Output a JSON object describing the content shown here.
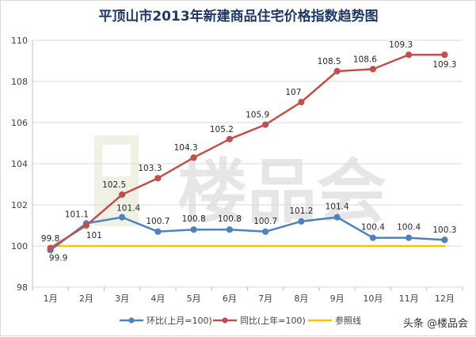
{
  "chart_data": {
    "type": "line",
    "title": "平顶山市2013年新建商品住宅价格指数趋势图",
    "categories": [
      "1月",
      "2月",
      "3月",
      "4月",
      "5月",
      "6月",
      "7月",
      "8月",
      "9月",
      "10月",
      "11月",
      "12月"
    ],
    "ylim": [
      98,
      110
    ],
    "yticks": [
      98,
      100,
      102,
      104,
      106,
      108,
      110
    ],
    "grid": true,
    "legend_position": "bottom",
    "series": [
      {
        "name": "环比(上月=100)",
        "color": "#4f81bd",
        "values": [
          99.8,
          101.1,
          101.4,
          100.7,
          100.8,
          100.8,
          100.7,
          101.2,
          101.4,
          100.4,
          100.4,
          100.3
        ],
        "labels": [
          "99.8",
          "101.1",
          "101.4",
          "100.7",
          "100.8",
          "100.8",
          "100.7",
          "101.2",
          "101.4",
          "100.4",
          "100.4",
          "100.3"
        ]
      },
      {
        "name": "同比(上年=100)",
        "color": "#c0504d",
        "values": [
          99.9,
          101,
          102.5,
          103.3,
          104.3,
          105.2,
          105.9,
          107,
          108.5,
          108.6,
          109.3,
          109.3
        ],
        "labels": [
          "99.9",
          "101",
          "102.5",
          "103.3",
          "104.3",
          "105.2",
          "105.9",
          "107",
          "108.5",
          "108.6",
          "109.3",
          "109.3"
        ]
      },
      {
        "name": "参照线",
        "color": "#ffc000",
        "values": [
          100,
          100,
          100,
          100,
          100,
          100,
          100,
          100,
          100,
          100,
          100,
          100
        ]
      }
    ]
  },
  "watermark": {
    "brand_text": "楼品会",
    "credit_text": "头条 @楼品会"
  }
}
